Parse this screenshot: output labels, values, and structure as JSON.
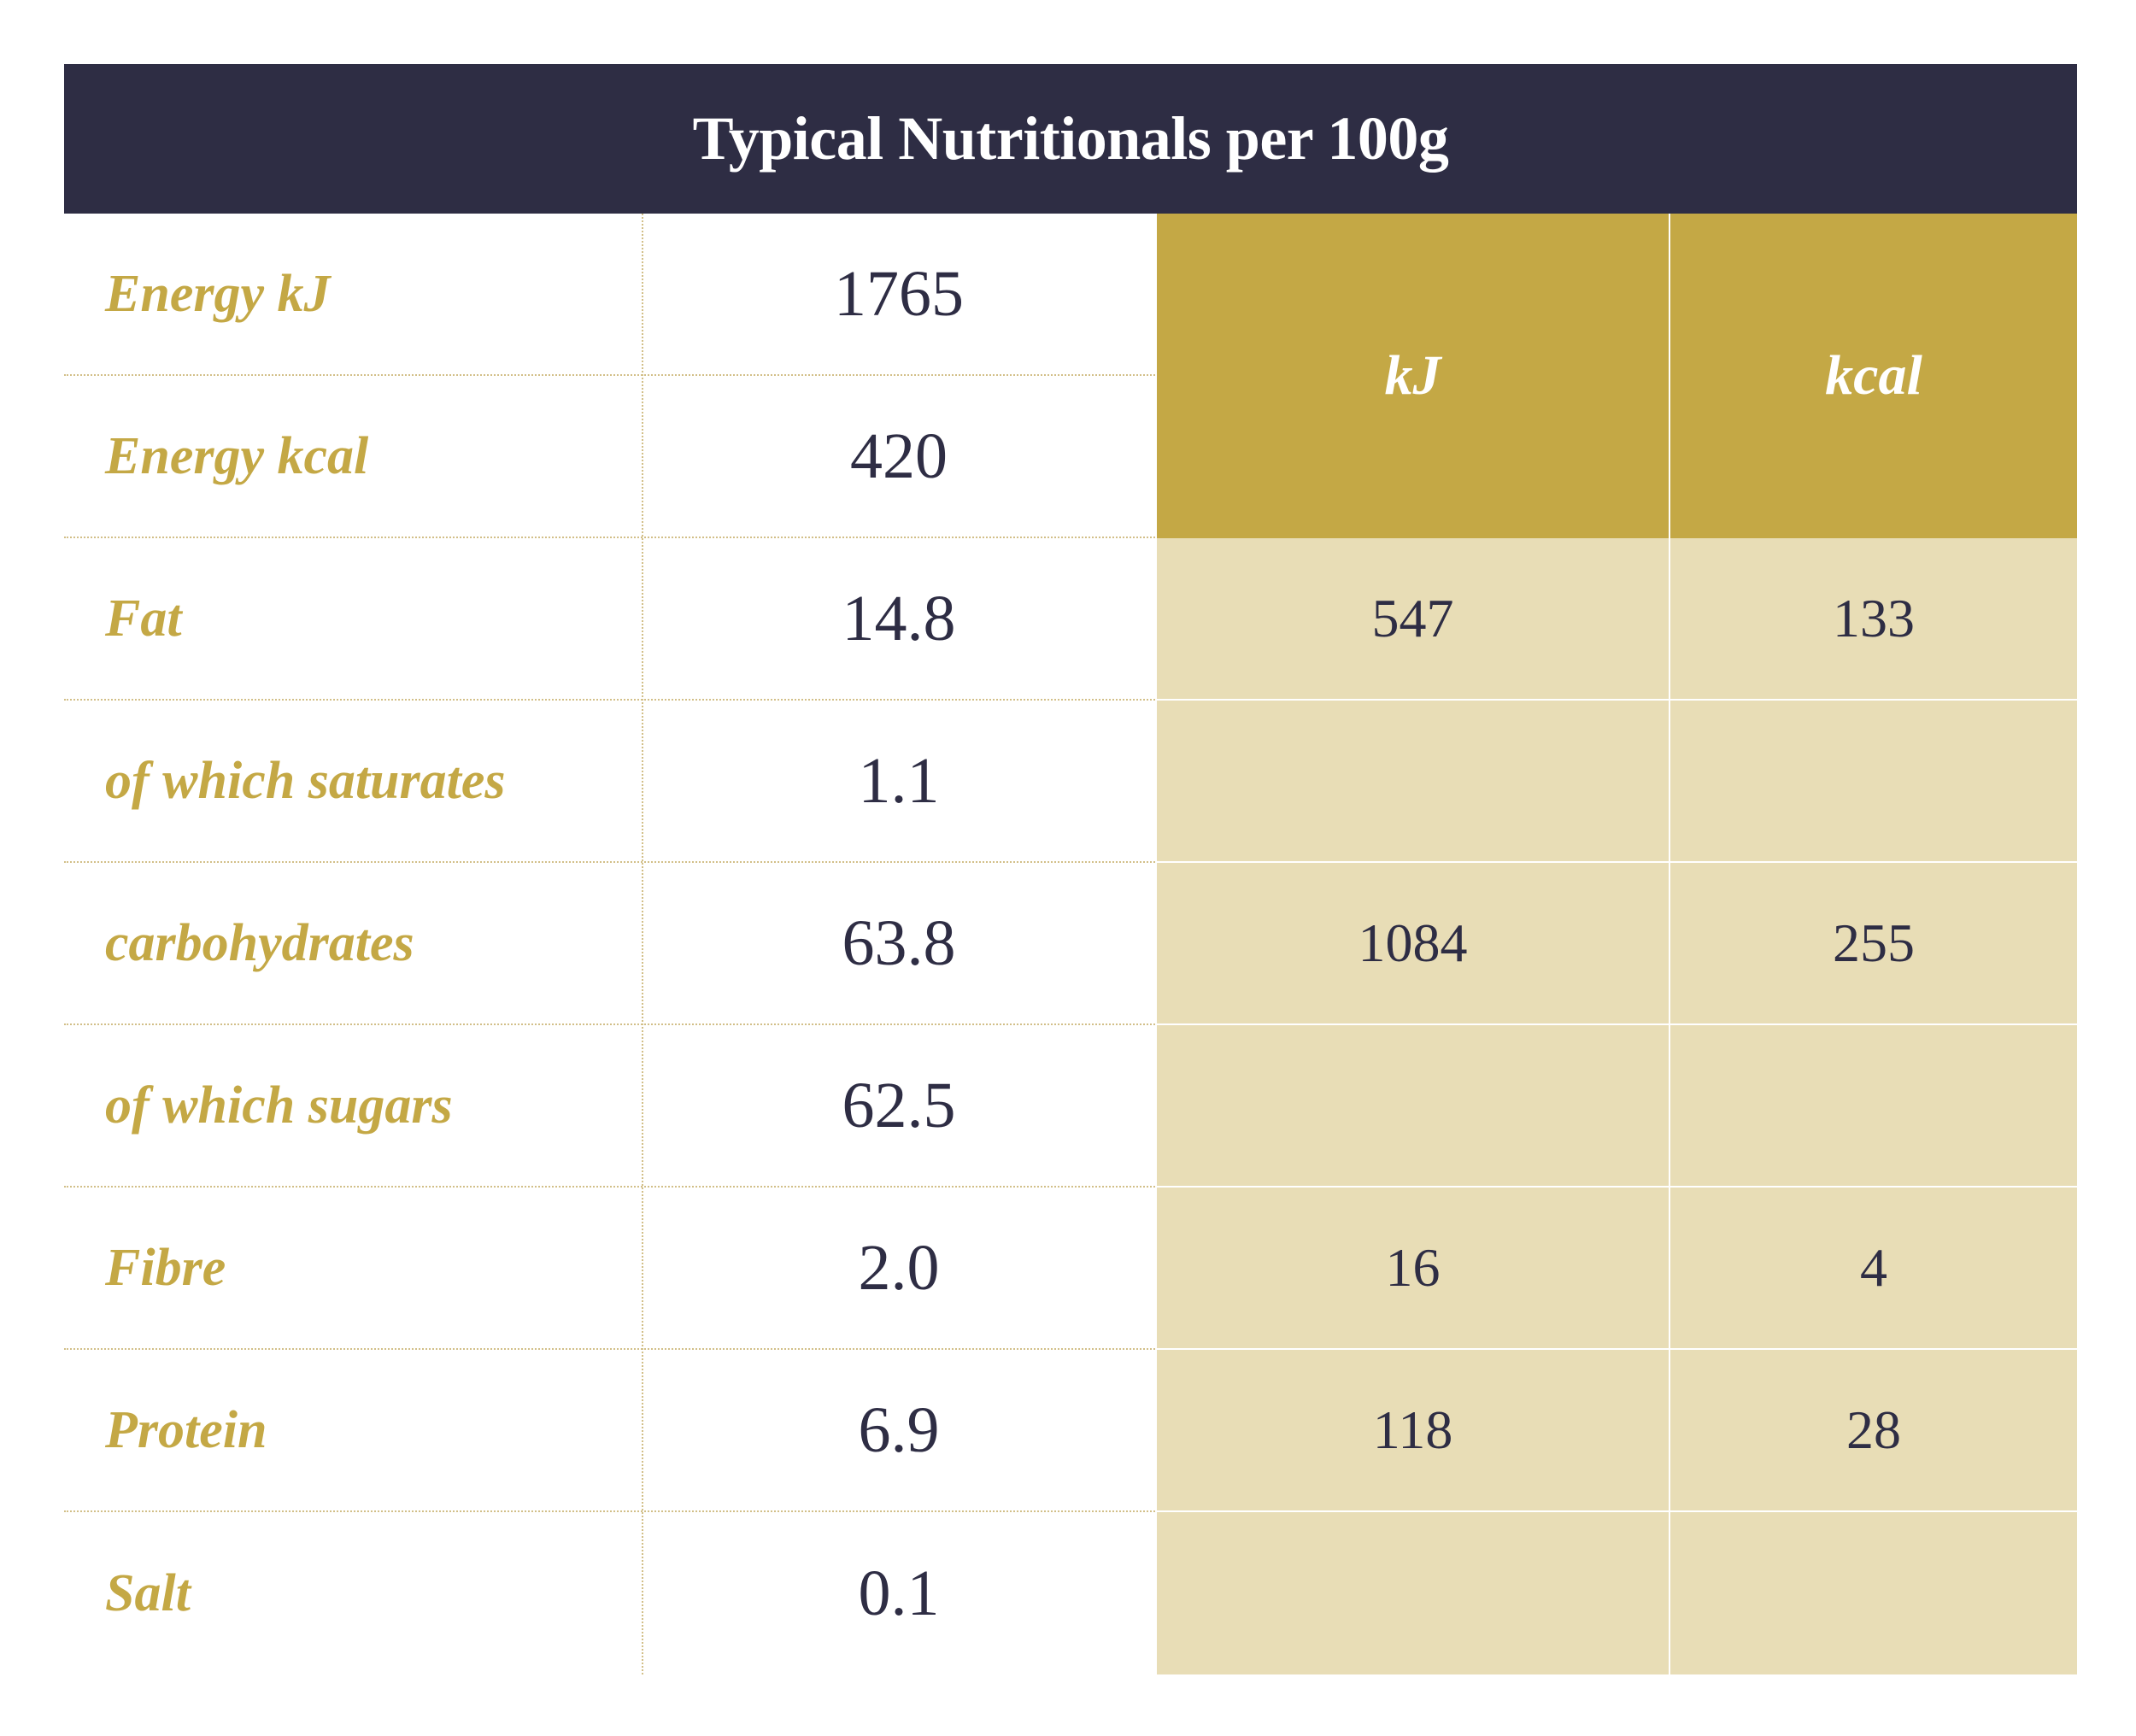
{
  "title": "Typical Nutritionals per 100g",
  "rows": [
    {
      "label": "Energy kJ",
      "value": "1765"
    },
    {
      "label": "Energy kcal",
      "value": "420"
    },
    {
      "label": "Fat",
      "value": "14.8"
    },
    {
      "label": "of which saturates",
      "value": "1.1"
    },
    {
      "label": "carbohydrates",
      "value": "63.8"
    },
    {
      "label": "of which sugars",
      "value": "62.5"
    },
    {
      "label": "Fibre",
      "value": "2.0"
    },
    {
      "label": "Protein",
      "value": "6.9"
    },
    {
      "label": "Salt",
      "value": "0.1"
    }
  ],
  "energy_columns": {
    "kj_label": "kJ",
    "kcal_label": "kcal"
  },
  "energy_rows": [
    {
      "kj": "547",
      "kcal": "133"
    },
    {
      "kj": "",
      "kcal": ""
    },
    {
      "kj": "1084",
      "kcal": "255"
    },
    {
      "kj": "",
      "kcal": ""
    },
    {
      "kj": "16",
      "kcal": "4"
    },
    {
      "kj": "118",
      "kcal": "28"
    },
    {
      "kj": "",
      "kcal": ""
    }
  ],
  "colors": {
    "header_navy": "#2e2d44",
    "gold": "#c4a845",
    "light_gold": "#e8ddb6",
    "text_dark": "#2e2d44"
  }
}
